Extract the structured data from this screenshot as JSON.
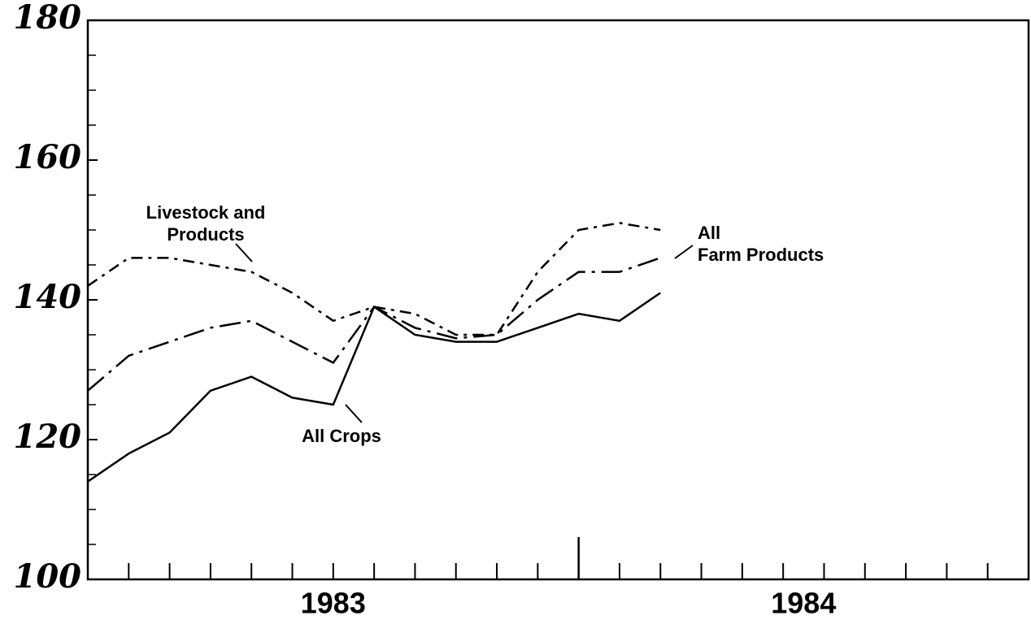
{
  "chart_data": {
    "type": "line",
    "x": [
      0,
      1,
      2,
      3,
      4,
      5,
      6,
      7,
      8,
      9,
      10,
      11,
      12,
      13,
      14
    ],
    "series": [
      {
        "name": "All Crops",
        "color": "#000000",
        "dash": "solid",
        "values": [
          114,
          118,
          121,
          127,
          129,
          126,
          125,
          139,
          135,
          134,
          134,
          136,
          138,
          137,
          141
        ]
      },
      {
        "name": "All Farm Products",
        "color": "#000000",
        "dash": "dash-dot",
        "values": [
          127,
          132,
          134,
          136,
          137,
          134,
          131,
          139,
          136,
          134.5,
          135,
          140,
          144,
          144,
          146
        ]
      },
      {
        "name": "Livestock and Products",
        "color": "#000000",
        "dash": "dash-dot-short",
        "values": [
          142,
          146,
          146,
          145,
          144,
          141,
          137,
          139,
          138,
          135,
          135,
          144,
          150,
          151,
          150
        ]
      }
    ],
    "annotations": [
      {
        "lines": [
          "Livestock and",
          "Products"
        ]
      },
      {
        "lines": [
          "All Crops"
        ]
      },
      {
        "lines": [
          "All",
          "Farm Products"
        ]
      }
    ],
    "xlim": [
      0,
      23
    ],
    "xticks": [
      {
        "value": 6,
        "label": "1983"
      },
      {
        "value": 17.5,
        "label": "1984"
      }
    ],
    "minor_xticks": [
      1,
      2,
      3,
      4,
      5,
      6,
      7,
      8,
      9,
      10,
      11,
      13,
      14,
      15,
      16,
      17,
      18,
      19,
      20,
      21,
      22
    ],
    "major_xticks": [
      12
    ],
    "ylim": [
      100,
      180
    ],
    "yticks": [
      100,
      120,
      140,
      160,
      180
    ],
    "minor_yticks": [
      105,
      110,
      115,
      125,
      130,
      135,
      145,
      150,
      155,
      165,
      170,
      175
    ],
    "grid": false
  }
}
